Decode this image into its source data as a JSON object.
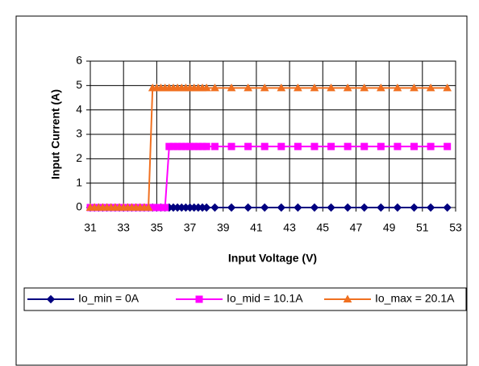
{
  "chart_data": {
    "type": "line",
    "xlabel": "Input Voltage (V)",
    "ylabel": "Input Current (A)",
    "x": [
      31,
      31.25,
      31.5,
      31.75,
      32,
      32.25,
      32.5,
      32.75,
      33,
      33.25,
      33.5,
      33.75,
      34,
      34.25,
      34.5,
      34.75,
      35,
      35.25,
      35.5,
      35.75,
      36,
      36.25,
      36.5,
      36.75,
      37,
      37.25,
      37.5,
      37.75,
      38,
      38.5,
      39.5,
      40.5,
      41.5,
      42.5,
      43.5,
      44.5,
      45.5,
      46.5,
      47.5,
      48.5,
      49.5,
      50.5,
      51.5,
      52.5
    ],
    "series": [
      {
        "name": "Io_min = 0A",
        "color": "#000080",
        "marker": "diamond",
        "values": [
          0,
          0,
          0,
          0,
          0,
          0,
          0,
          0,
          0,
          0,
          0,
          0,
          0,
          0,
          0,
          0,
          0,
          0,
          0,
          0,
          0,
          0,
          0,
          0,
          0,
          0,
          0,
          0,
          0,
          0,
          0,
          0,
          0,
          0,
          0,
          0,
          0,
          0,
          0,
          0,
          0,
          0,
          0,
          0
        ]
      },
      {
        "name": "Io_mid = 10.1A",
        "color": "#ff00ff",
        "marker": "square",
        "values": [
          0,
          0,
          0,
          0,
          0,
          0,
          0,
          0,
          0,
          0,
          0,
          0,
          0,
          0,
          0,
          0,
          0,
          0,
          0,
          2.5,
          2.5,
          2.5,
          2.5,
          2.5,
          2.5,
          2.5,
          2.5,
          2.5,
          2.5,
          2.5,
          2.5,
          2.5,
          2.5,
          2.5,
          2.5,
          2.5,
          2.5,
          2.5,
          2.5,
          2.5,
          2.5,
          2.5,
          2.5,
          2.5
        ]
      },
      {
        "name": "Io_max = 20.1A",
        "color": "#f07020",
        "marker": "triangle",
        "values": [
          0,
          0,
          0,
          0,
          0,
          0,
          0,
          0,
          0,
          0,
          0,
          0,
          0,
          0,
          0,
          4.9,
          4.9,
          4.9,
          4.9,
          4.9,
          4.9,
          4.9,
          4.9,
          4.9,
          4.9,
          4.9,
          4.9,
          4.9,
          4.9,
          4.9,
          4.9,
          4.9,
          4.9,
          4.9,
          4.9,
          4.9,
          4.9,
          4.9,
          4.9,
          4.9,
          4.9,
          4.9,
          4.9,
          4.9
        ]
      }
    ],
    "xlim": [
      31,
      53
    ],
    "xticks": [
      31,
      33,
      35,
      37,
      39,
      41,
      43,
      45,
      47,
      49,
      51,
      53
    ],
    "ylim": [
      0,
      6
    ],
    "yticks": [
      0,
      1,
      2,
      3,
      4,
      5,
      6
    ],
    "grid": true,
    "legend": "bottom"
  }
}
